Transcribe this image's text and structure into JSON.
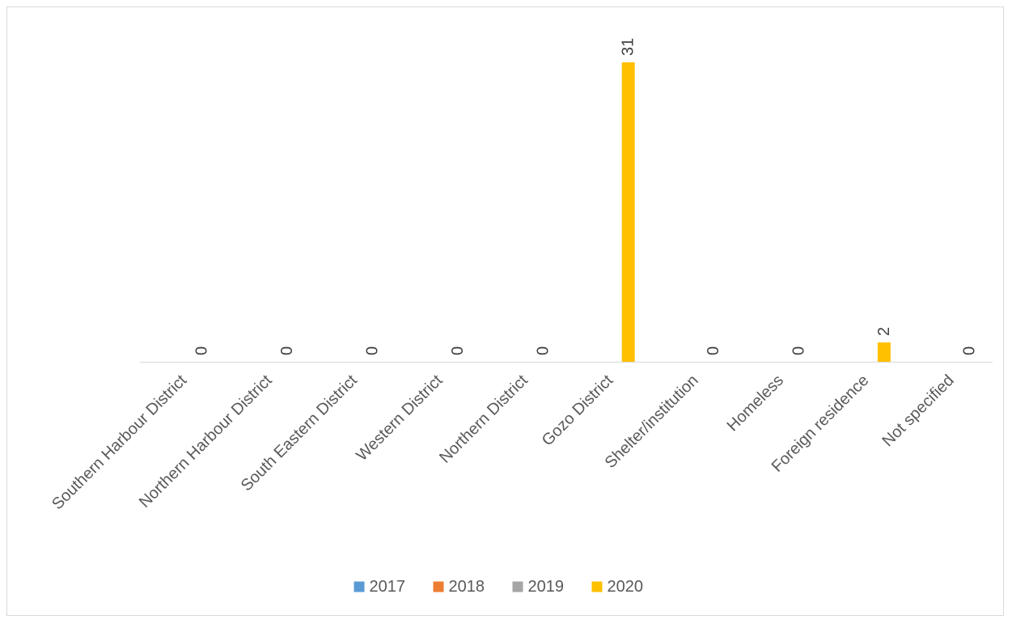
{
  "chart_data": {
    "type": "bar",
    "categories": [
      "Southern Harbour District",
      "Northern Harbour District",
      "South Eastern District",
      "Western District",
      "Northern District",
      "Gozo District",
      "Shelter/institution",
      "Homeless",
      "Foreign residence",
      "Not specified"
    ],
    "series": [
      {
        "name": "2017",
        "color": "#5b9bd5",
        "values": [
          null,
          null,
          null,
          null,
          null,
          null,
          null,
          null,
          null,
          null
        ]
      },
      {
        "name": "2018",
        "color": "#ed7d31",
        "values": [
          null,
          null,
          null,
          null,
          null,
          null,
          null,
          null,
          null,
          null
        ]
      },
      {
        "name": "2019",
        "color": "#a5a5a5",
        "values": [
          null,
          null,
          null,
          null,
          null,
          null,
          null,
          null,
          null,
          null
        ]
      },
      {
        "name": "2020",
        "color": "#ffc000",
        "values": [
          0,
          0,
          0,
          0,
          0,
          31,
          0,
          0,
          2,
          0
        ]
      }
    ],
    "ylim": [
      0,
      31
    ],
    "grid": false,
    "legend_position": "bottom"
  }
}
